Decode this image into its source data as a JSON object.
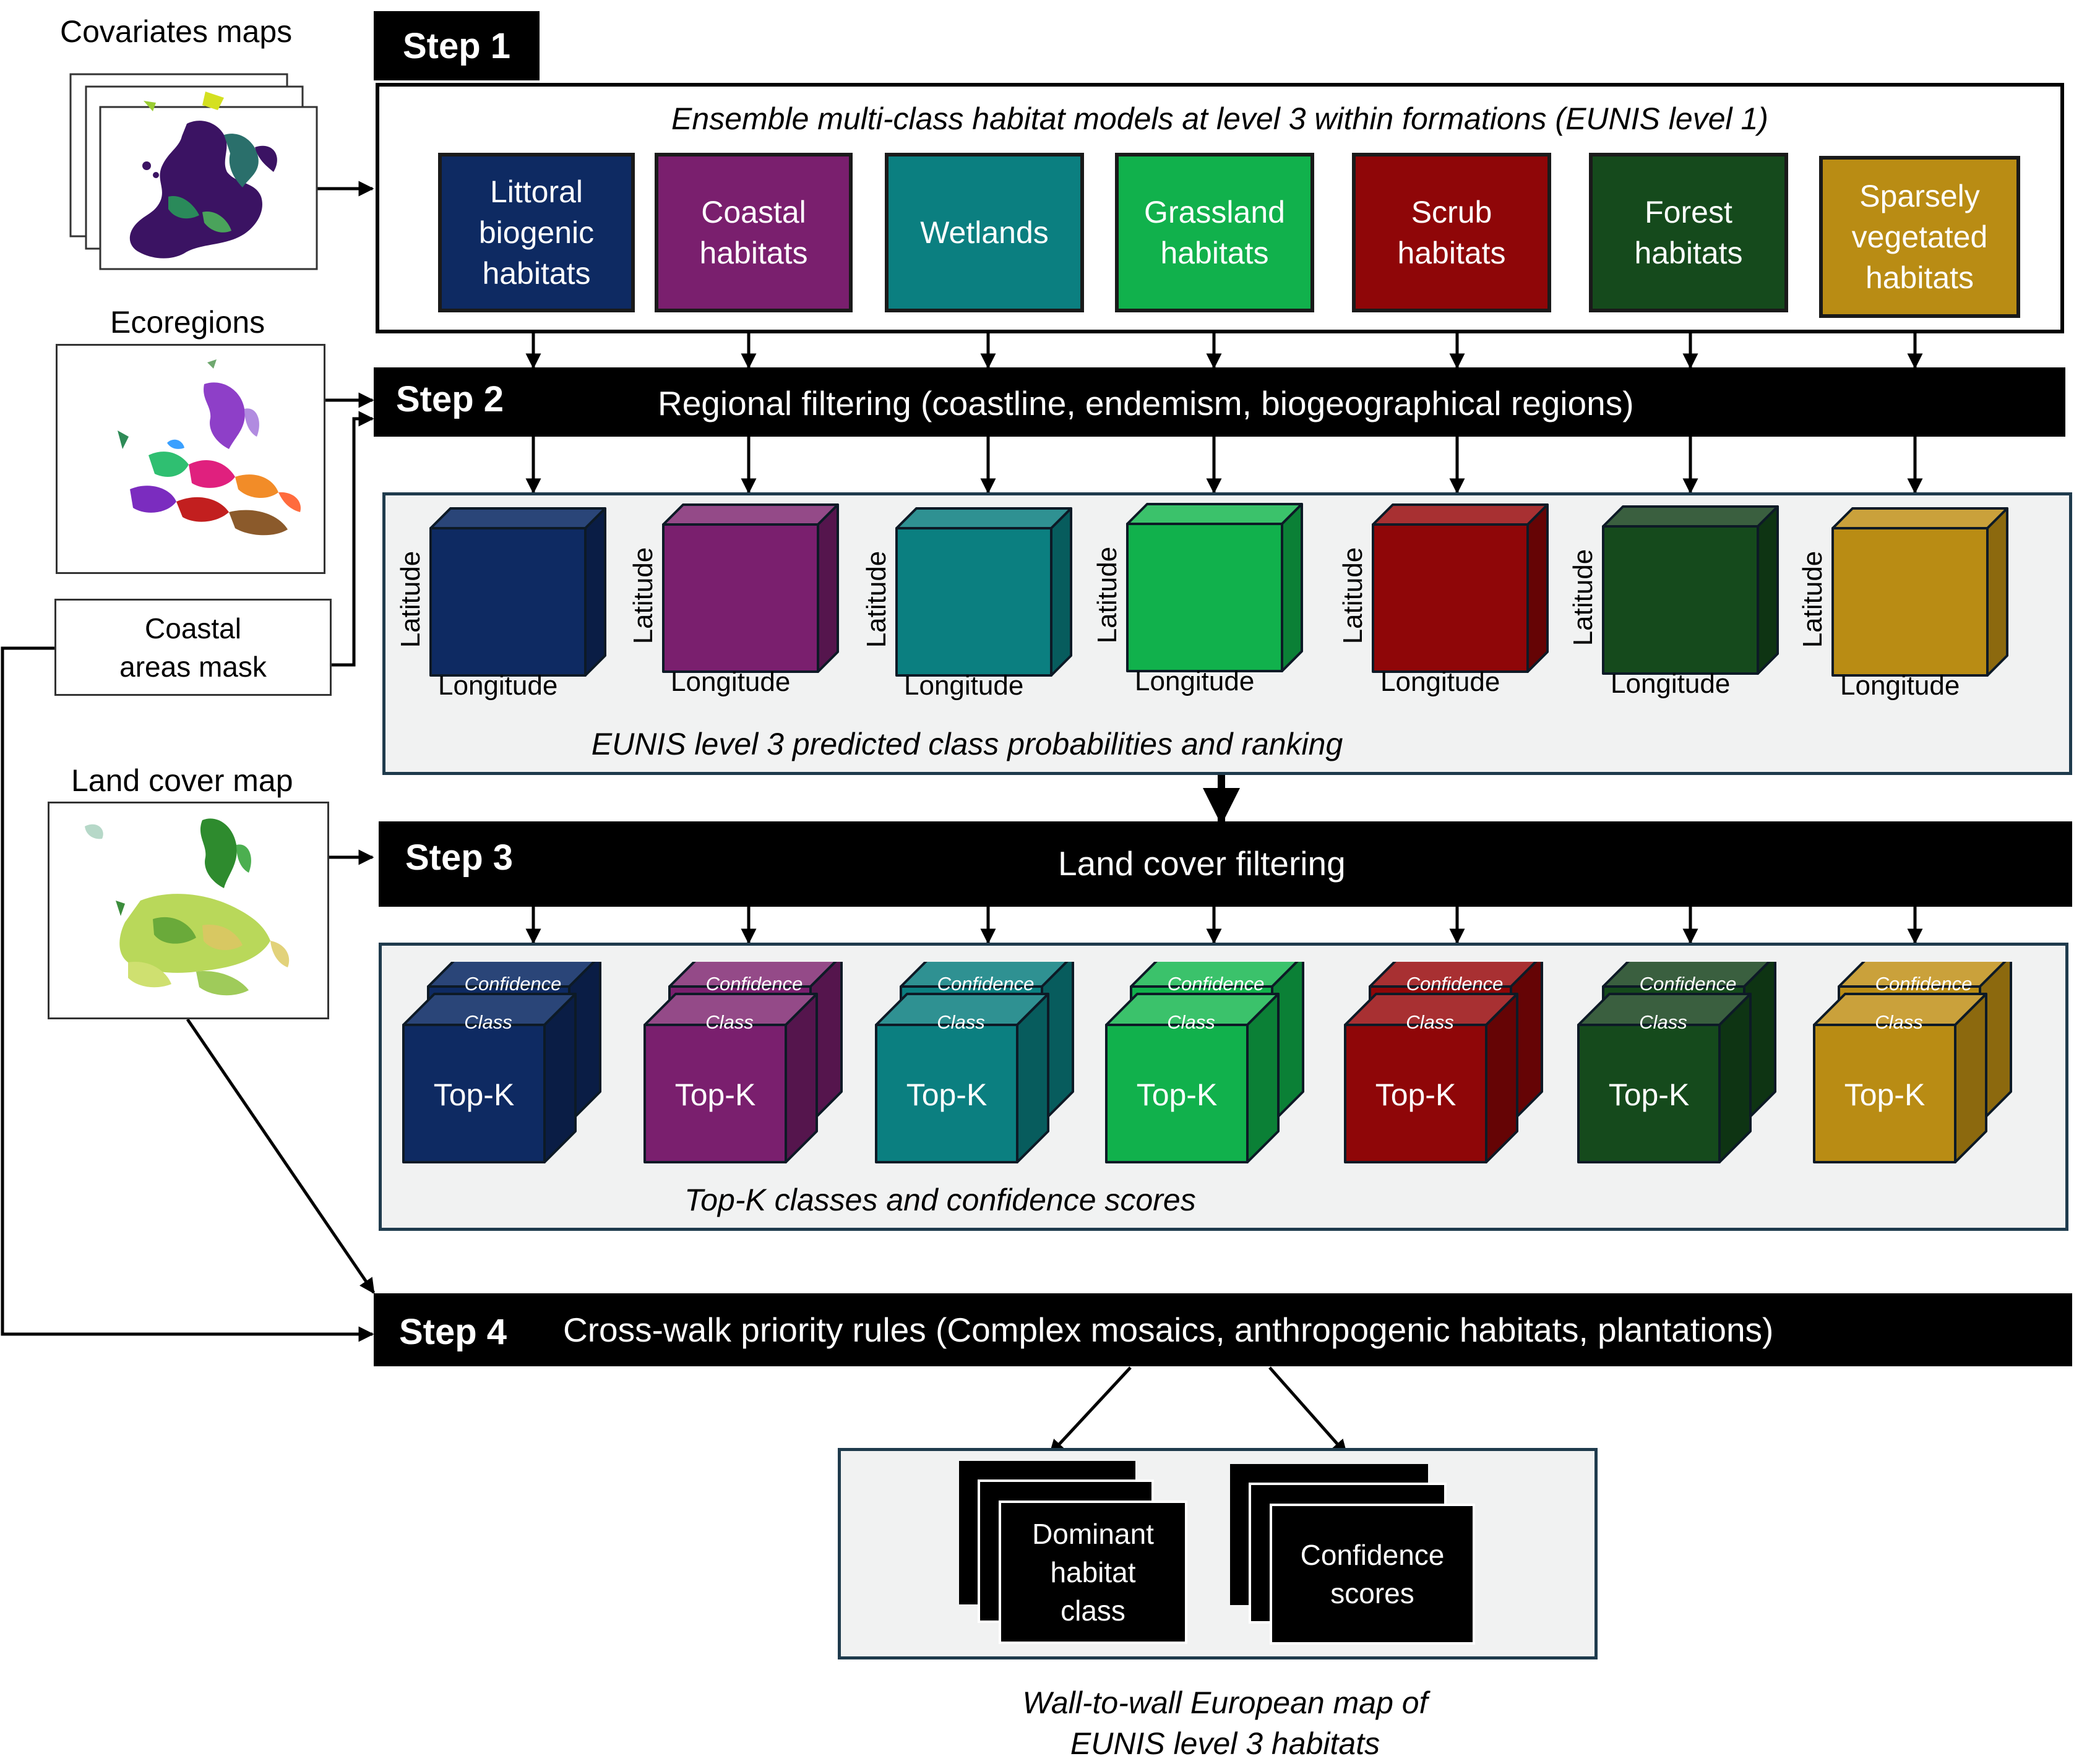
{
  "inputs": {
    "covariates_title": "Covariates maps",
    "ecoregions_title": "Ecoregions",
    "coastal_mask_label": "Coastal areas mask",
    "land_cover_title": "Land cover map"
  },
  "step1": {
    "label": "Step 1",
    "title": "Ensemble multi-class habitat models at level 3 within formations (EUNIS level 1)"
  },
  "step2": {
    "label": "Step 2",
    "title": "Regional filtering (coastline, endemism, biogeographical regions)"
  },
  "step3": {
    "label": "Step 3",
    "title": "Land cover filtering"
  },
  "step4": {
    "label": "Step 4",
    "title": "Cross-walk priority rules  (Complex mosaics, anthropogenic habitats, plantations)"
  },
  "habitats": [
    {
      "name": "Littoral biogenic habitats",
      "color": "#0e2a62",
      "dark": "#0a1d45",
      "light": "#2a4578"
    },
    {
      "name": "Coastal habitats",
      "color": "#7a1f6e",
      "dark": "#55154d",
      "light": "#944a88"
    },
    {
      "name": "Wetlands",
      "color": "#0b7f80",
      "dark": "#075c5d",
      "light": "#2f9192"
    },
    {
      "name": "Grassland habitats",
      "color": "#11b14c",
      "dark": "#0b8036",
      "light": "#3bc26b"
    },
    {
      "name": "Scrub habitats",
      "color": "#8f0608",
      "dark": "#650405",
      "light": "#a83032"
    },
    {
      "name": "Forest habitats",
      "color": "#154a1c",
      "dark": "#0e3413",
      "light": "#3a5f3f"
    },
    {
      "name": "Sparsely vegetated habitats",
      "color": "#b98c14",
      "dark": "#8c690e",
      "light": "#caa13b"
    }
  ],
  "probability_panel": {
    "axis_x": "Longitude",
    "axis_y": "Latitude",
    "caption": "EUNIS level 3 predicted class probabilities and ranking"
  },
  "topk_panel": {
    "confidence_label": "Confidence",
    "class_label": "Class",
    "front_label": "Top-K",
    "caption": "Top-K classes and confidence scores"
  },
  "outputs": {
    "dominant_label": "Dominant habitat class",
    "confidence_label": "Confidence scores",
    "caption_line1": "Wall-to-wall European map of",
    "caption_line2": "EUNIS level 3 habitats"
  }
}
